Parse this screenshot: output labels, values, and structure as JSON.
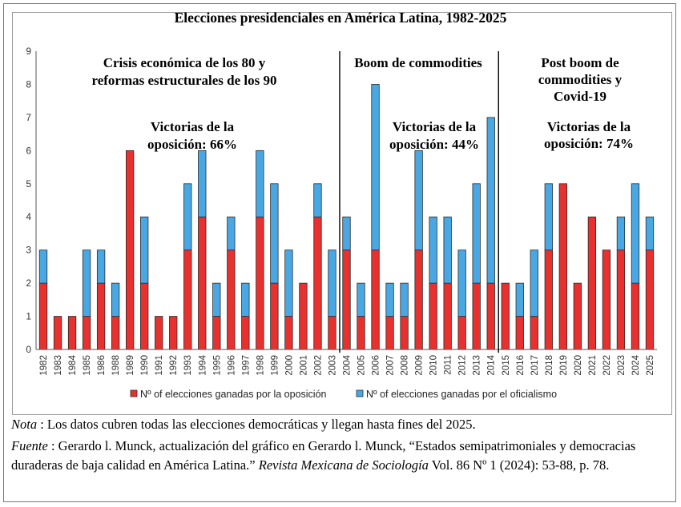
{
  "chart_data": {
    "type": "bar",
    "stacked": true,
    "title": "Elecciones presidenciales en América Latina, 1982-2025",
    "categories": [
      "1982",
      "1983",
      "1984",
      "1985",
      "1986",
      "1988",
      "1989",
      "1990",
      "1991",
      "1992",
      "1993",
      "1994",
      "1995",
      "1996",
      "1997",
      "1998",
      "1999",
      "2000",
      "2001",
      "2002",
      "2003",
      "2004",
      "2005",
      "2006",
      "2007",
      "2008",
      "2009",
      "2010",
      "2011",
      "2012",
      "2013",
      "2014",
      "2015",
      "2016",
      "2017",
      "2018",
      "2019",
      "2020",
      "2021",
      "2022",
      "2023",
      "2024",
      "2025"
    ],
    "series": [
      {
        "name": "Nº of elecciones ganadas por la oposición",
        "color": "#e8312f",
        "values": [
          2,
          1,
          1,
          1,
          2,
          1,
          6,
          2,
          1,
          1,
          3,
          4,
          1,
          3,
          1,
          4,
          2,
          1,
          2,
          4,
          1,
          3,
          1,
          3,
          1,
          1,
          3,
          2,
          2,
          1,
          2,
          2,
          2,
          1,
          1,
          3,
          5,
          2,
          4,
          3,
          3,
          2,
          3
        ]
      },
      {
        "name": "Nº of elecciones ganadas por el oficialismo",
        "color": "#49a8e4",
        "values": [
          1,
          0,
          0,
          2,
          1,
          1,
          0,
          2,
          0,
          0,
          2,
          2,
          1,
          1,
          1,
          2,
          3,
          2,
          0,
          1,
          2,
          1,
          1,
          5,
          1,
          1,
          3,
          2,
          2,
          2,
          3,
          5,
          0,
          1,
          2,
          2,
          0,
          0,
          0,
          0,
          1,
          3,
          1
        ]
      }
    ],
    "ylim": [
      0,
      9
    ],
    "yticks": [
      "0",
      "1",
      "2",
      "3",
      "4",
      "5",
      "6",
      "7",
      "8",
      "9"
    ],
    "grid": false,
    "legend_position": "bottom",
    "period_dividers_after": [
      "2003",
      "2014"
    ],
    "annotations": [
      {
        "lines": [
          "Crisis económica de los 80 y",
          "reformas estructurales de los 90"
        ]
      },
      {
        "lines": [
          "Victorias de la",
          "oposición: 66%"
        ]
      },
      {
        "lines": [
          "Boom de commodities"
        ]
      },
      {
        "lines": [
          "Victorias de la",
          "oposición: 44%"
        ]
      },
      {
        "lines": [
          "Post boom de",
          "commodities y",
          "Covid-19"
        ]
      },
      {
        "lines": [
          "Victorias de la",
          "oposición: 74%"
        ]
      }
    ]
  },
  "notes": {
    "nota_label": "Nota",
    "nota_text": " : Los datos cubren todas las elecciones democráticas y llegan hasta fines del 2025.",
    "fuente_label": "Fuente",
    "fuente_text": " : Gerardo l. Munck, actualización del gráfico en Gerardo l. Munck, “Estados semipatrimoniales y democracias duraderas de baja calidad en América Latina.” ",
    "journal": "Revista Mexicana de Sociología",
    "fuente_tail": "  Vol. 86 Nº 1 (2024): 53-88, p. 78."
  }
}
